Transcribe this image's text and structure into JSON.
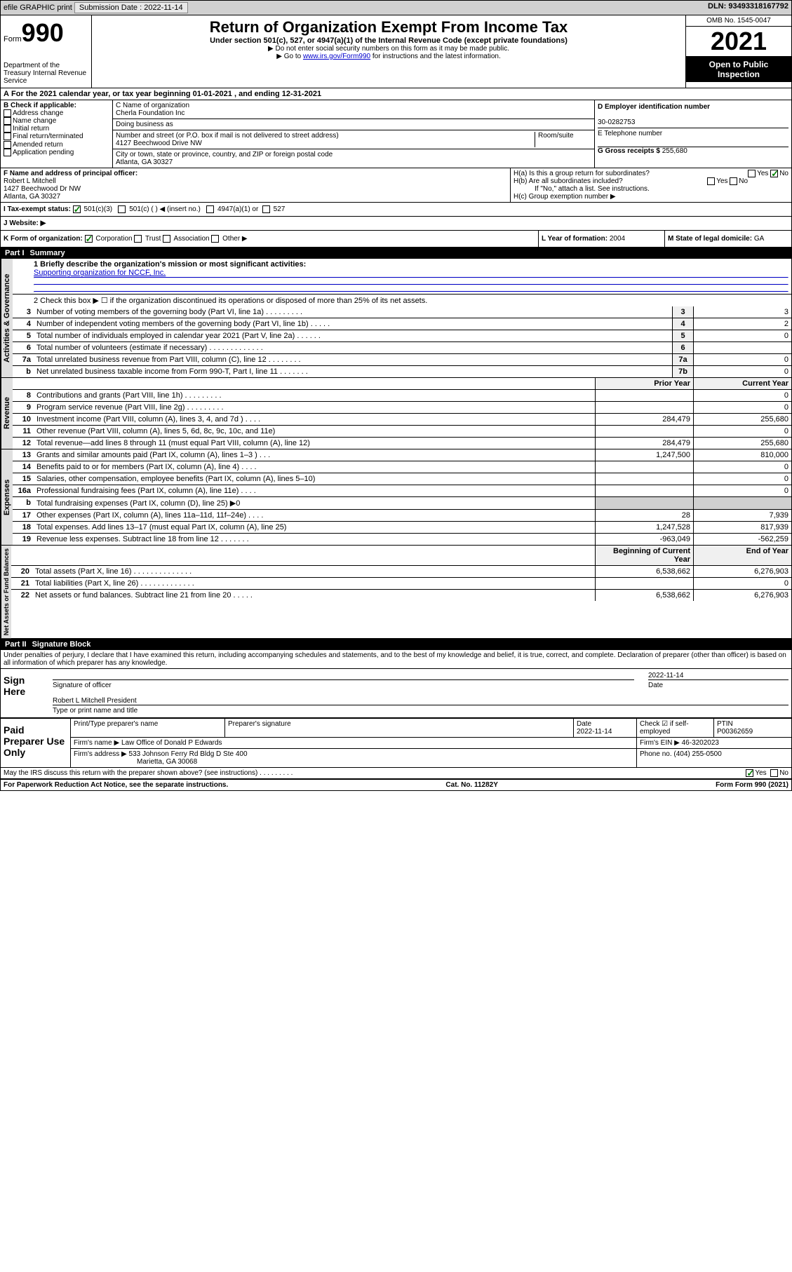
{
  "topbar": {
    "efile": "efile GRAPHIC print",
    "submission_label": "Submission Date :",
    "submission_date": "2022-11-14",
    "dln_label": "DLN:",
    "dln": "93493318167792"
  },
  "header": {
    "form_word": "Form",
    "form_num": "990",
    "title": "Return of Organization Exempt From Income Tax",
    "subtitle": "Under section 501(c), 527, or 4947(a)(1) of the Internal Revenue Code (except private foundations)",
    "note1": "▶ Do not enter social security numbers on this form as it may be made public.",
    "note2_pre": "▶ Go to ",
    "note2_link": "www.irs.gov/Form990",
    "note2_post": " for instructions and the latest information.",
    "omb": "OMB No. 1545-0047",
    "year": "2021",
    "open": "Open to Public Inspection",
    "dept": "Department of the Treasury\nInternal Revenue Service"
  },
  "period": {
    "text_pre": "For the 2021 calendar year, or tax year beginning ",
    "begin": "01-01-2021",
    "mid": " , and ending ",
    "end": "12-31-2021"
  },
  "boxB": {
    "label": "B Check if applicable:",
    "items": [
      "Address change",
      "Name change",
      "Initial return",
      "Final return/terminated",
      "Amended return",
      "Application pending"
    ]
  },
  "boxC": {
    "name_label": "C Name of organization",
    "name": "Cherla Foundation Inc",
    "dba_label": "Doing business as",
    "addr_label": "Number and street (or P.O. box if mail is not delivered to street address)",
    "room_label": "Room/suite",
    "addr": "4127 Beechwood Drive NW",
    "city_label": "City or town, state or province, country, and ZIP or foreign postal code",
    "city": "Atlanta, GA  30327"
  },
  "boxD": {
    "label": "D Employer identification number",
    "ein": "30-0282753"
  },
  "boxE": {
    "label": "E Telephone number"
  },
  "boxG": {
    "label": "G Gross receipts $",
    "val": "255,680"
  },
  "boxF": {
    "label": "F Name and address of principal officer:",
    "name": "Robert L Mitchell",
    "addr": "1427 Beechwood Dr NW",
    "city": "Atlanta, GA  30327"
  },
  "boxH": {
    "a": "H(a)  Is this a group return for subordinates?",
    "b": "H(b)  Are all subordinates included?",
    "note": "If \"No,\" attach a list. See instructions.",
    "c": "H(c)  Group exemption number ▶",
    "yes": "Yes",
    "no": "No"
  },
  "boxI": {
    "label": "I    Tax-exempt status:",
    "opt1": "501(c)(3)",
    "opt2": "501(c) (  ) ◀ (insert no.)",
    "opt3": "4947(a)(1) or",
    "opt4": "527"
  },
  "boxJ": {
    "label": "J    Website: ▶"
  },
  "boxK": {
    "label": "K Form of organization:",
    "opts": [
      "Corporation",
      "Trust",
      "Association",
      "Other ▶"
    ]
  },
  "boxL": {
    "label": "L Year of formation:",
    "val": "2004"
  },
  "boxM": {
    "label": "M State of legal domicile:",
    "val": "GA"
  },
  "part1": {
    "num": "Part I",
    "title": "Summary",
    "line1_label": "1   Briefly describe the organization's mission or most significant activities:",
    "line1_val": "Supporting organization for NCCF, Inc.",
    "line2": "2   Check this box ▶ ☐ if the organization discontinued its operations or disposed of more than 25% of its net assets.",
    "sections": {
      "gov": "Activities & Governance",
      "rev": "Revenue",
      "exp": "Expenses",
      "net": "Net Assets or Fund Balances"
    },
    "rows_gov": [
      {
        "n": "3",
        "d": "Number of voting members of the governing body (Part VI, line 1a)  .    .    .    .    .    .    .    .    .",
        "bn": "3",
        "v": "3"
      },
      {
        "n": "4",
        "d": "Number of independent voting members of the governing body (Part VI, line 1b)  .    .    .    .    .",
        "bn": "4",
        "v": "2"
      },
      {
        "n": "5",
        "d": "Total number of individuals employed in calendar year 2021 (Part V, line 2a)  .    .    .    .    .    .",
        "bn": "5",
        "v": "0"
      },
      {
        "n": "6",
        "d": "Total number of volunteers (estimate if necessary)  .    .    .    .    .    .    .    .    .    .    .    .    .",
        "bn": "6",
        "v": ""
      },
      {
        "n": "7a",
        "d": "Total unrelated business revenue from Part VIII, column (C), line 12  .    .    .    .    .    .    .    .",
        "bn": "7a",
        "v": "0"
      },
      {
        "n": "b",
        "d": "Net unrelated business taxable income from Form 990-T, Part I, line 11  .    .    .    .    .    .    .",
        "bn": "7b",
        "v": "0"
      }
    ],
    "col_prior": "Prior Year",
    "col_current": "Current Year",
    "rows_rev": [
      {
        "n": "8",
        "d": "Contributions and grants (Part VIII, line 1h)  .    .    .    .    .    .    .    .    .",
        "p": "",
        "c": "0"
      },
      {
        "n": "9",
        "d": "Program service revenue (Part VIII, line 2g)  .    .    .    .    .    .    .    .    .",
        "p": "",
        "c": "0"
      },
      {
        "n": "10",
        "d": "Investment income (Part VIII, column (A), lines 3, 4, and 7d )  .    .    .    .",
        "p": "284,479",
        "c": "255,680"
      },
      {
        "n": "11",
        "d": "Other revenue (Part VIII, column (A), lines 5, 6d, 8c, 9c, 10c, and 11e)",
        "p": "",
        "c": "0"
      },
      {
        "n": "12",
        "d": "Total revenue—add lines 8 through 11 (must equal Part VIII, column (A), line 12)",
        "p": "284,479",
        "c": "255,680"
      }
    ],
    "rows_exp": [
      {
        "n": "13",
        "d": "Grants and similar amounts paid (Part IX, column (A), lines 1–3 )  .    .    .",
        "p": "1,247,500",
        "c": "810,000"
      },
      {
        "n": "14",
        "d": "Benefits paid to or for members (Part IX, column (A), line 4)  .    .    .    .",
        "p": "",
        "c": "0"
      },
      {
        "n": "15",
        "d": "Salaries, other compensation, employee benefits (Part IX, column (A), lines 5–10)",
        "p": "",
        "c": "0"
      },
      {
        "n": "16a",
        "d": "Professional fundraising fees (Part IX, column (A), line 11e)  .    .    .    .",
        "p": "",
        "c": "0"
      },
      {
        "n": "b",
        "d": "Total fundraising expenses (Part IX, column (D), line 25) ▶0",
        "p": "",
        "c": "",
        "shaded": true
      },
      {
        "n": "17",
        "d": "Other expenses (Part IX, column (A), lines 11a–11d, 11f–24e)  .    .    .    .",
        "p": "28",
        "c": "7,939"
      },
      {
        "n": "18",
        "d": "Total expenses. Add lines 13–17 (must equal Part IX, column (A), line 25)",
        "p": "1,247,528",
        "c": "817,939"
      },
      {
        "n": "19",
        "d": "Revenue less expenses. Subtract line 18 from line 12  .    .    .    .    .    .    .",
        "p": "-963,049",
        "c": "-562,259"
      }
    ],
    "col_begin": "Beginning of Current Year",
    "col_end": "End of Year",
    "rows_net": [
      {
        "n": "20",
        "d": "Total assets (Part X, line 16)  .    .    .    .    .    .    .    .    .    .    .    .    .    .",
        "p": "6,538,662",
        "c": "6,276,903"
      },
      {
        "n": "21",
        "d": "Total liabilities (Part X, line 26)  .    .    .    .    .    .    .    .    .    .    .    .    .",
        "p": "",
        "c": "0"
      },
      {
        "n": "22",
        "d": "Net assets or fund balances. Subtract line 21 from line 20  .    .    .    .    .",
        "p": "6,538,662",
        "c": "6,276,903"
      }
    ]
  },
  "part2": {
    "num": "Part II",
    "title": "Signature Block",
    "decl": "Under penalties of perjury, I declare that I have examined this return, including accompanying schedules and statements, and to the best of my knowledge and belief, it is true, correct, and complete. Declaration of preparer (other than officer) is based on all information of which preparer has any knowledge.",
    "sign_here": "Sign Here",
    "sig_officer": "Signature of officer",
    "sig_date": "2022-11-14",
    "date_label": "Date",
    "officer_name": "Robert L Mitchell  President",
    "type_label": "Type or print name and title",
    "paid": "Paid Preparer Use Only",
    "prep_name_label": "Print/Type preparer's name",
    "prep_sig_label": "Preparer's signature",
    "prep_date_label": "Date",
    "prep_date": "2022-11-14",
    "check_label": "Check ☑ if self-employed",
    "ptin_label": "PTIN",
    "ptin": "P00362659",
    "firm_name_label": "Firm's name    ▶",
    "firm_name": "Law Office of Donald P Edwards",
    "firm_ein_label": "Firm's EIN ▶",
    "firm_ein": "46-3202023",
    "firm_addr_label": "Firm's address ▶",
    "firm_addr": "533 Johnson Ferry Rd Bldg D Ste 400",
    "firm_city": "Marietta, GA  30068",
    "phone_label": "Phone no.",
    "phone": "(404) 255-0500",
    "discuss": "May the IRS discuss this return with the preparer shown above? (see instructions)  .    .    .    .    .    .    .    .    .",
    "yes": "Yes",
    "no": "No"
  },
  "footer": {
    "paperwork": "For Paperwork Reduction Act Notice, see the separate instructions.",
    "cat": "Cat. No. 11282Y",
    "form": "Form 990 (2021)"
  }
}
